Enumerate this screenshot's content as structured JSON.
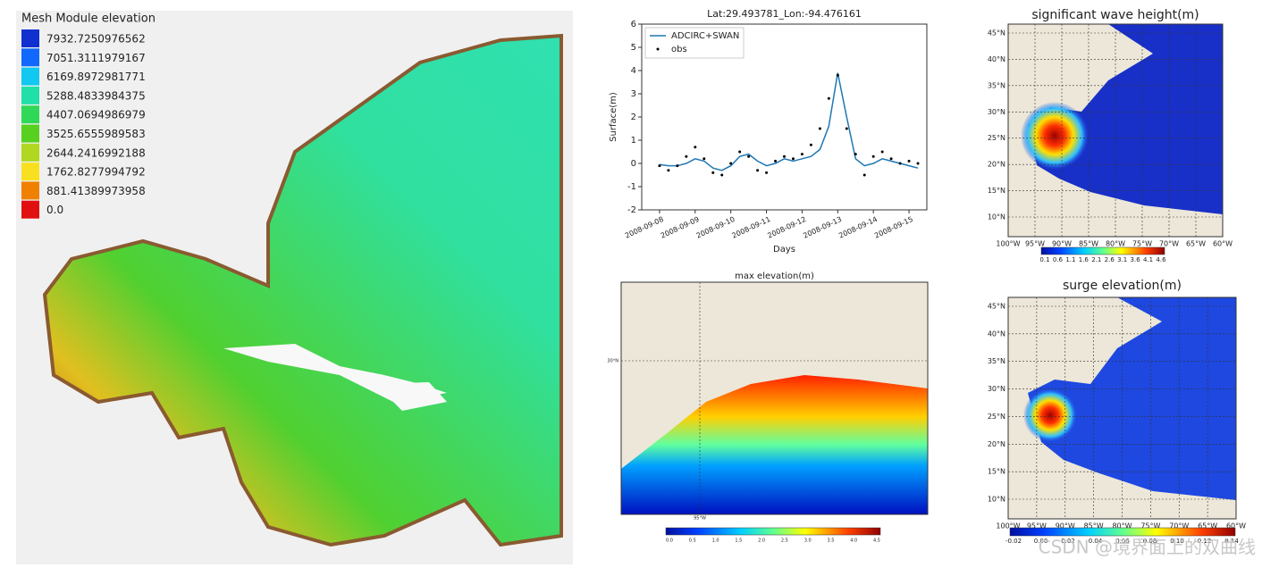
{
  "mesh_panel": {
    "title": "Mesh Module elevation",
    "legend": [
      {
        "label": "7932.7250976562",
        "color": "#1030d0"
      },
      {
        "label": "7051.3111979167",
        "color": "#1068ff"
      },
      {
        "label": "6169.8972981771",
        "color": "#10c8f0"
      },
      {
        "label": "5288.4833984375",
        "color": "#20e0a8"
      },
      {
        "label": "4407.0694986979",
        "color": "#30d858"
      },
      {
        "label": "3525.6555989583",
        "color": "#58d020"
      },
      {
        "label": "2644.2416992188",
        "color": "#b0d820"
      },
      {
        "label": "1762.8277994792",
        "color": "#f8e020"
      },
      {
        "label": "881.41389973958",
        "color": "#f08000"
      },
      {
        "label": "0.0",
        "color": "#e01010"
      }
    ]
  },
  "chart_data": {
    "type": "line",
    "title": "Lat:29.493781_Lon:-94.476161",
    "x_label": "Days",
    "y_label": "Surface(m)",
    "x": [
      "2008-09-08 00:00",
      "2008-09-08 06:00",
      "2008-09-08 12:00",
      "2008-09-08 18:00",
      "2008-09-09 00:00",
      "2008-09-09 06:00",
      "2008-09-09 12:00",
      "2008-09-09 18:00",
      "2008-09-10 00:00",
      "2008-09-10 06:00",
      "2008-09-10 12:00",
      "2008-09-10 18:00",
      "2008-09-11 00:00",
      "2008-09-11 06:00",
      "2008-09-11 12:00",
      "2008-09-11 18:00",
      "2008-09-12 00:00",
      "2008-09-12 06:00",
      "2008-09-12 12:00",
      "2008-09-12 18:00",
      "2008-09-13 00:00",
      "2008-09-13 06:00",
      "2008-09-13 12:00",
      "2008-09-13 18:00",
      "2008-09-14 00:00",
      "2008-09-14 06:00",
      "2008-09-14 12:00",
      "2008-09-14 18:00",
      "2008-09-15 00:00",
      "2008-09-15 06:00"
    ],
    "series": [
      {
        "name": "ADCIRC+SWAN",
        "color": "#1f77b4",
        "style": "line",
        "values": [
          -0.05,
          -0.1,
          -0.1,
          0.0,
          0.2,
          0.1,
          -0.2,
          -0.3,
          -0.1,
          0.3,
          0.4,
          0.1,
          -0.1,
          0.0,
          0.2,
          0.1,
          0.2,
          0.3,
          0.6,
          1.6,
          3.9,
          2.0,
          0.2,
          -0.1,
          0.0,
          0.2,
          0.1,
          0.0,
          -0.1,
          -0.2
        ]
      },
      {
        "name": "obs",
        "color": "#000000",
        "style": "dots",
        "values": [
          -0.1,
          -0.3,
          -0.1,
          0.3,
          0.7,
          0.2,
          -0.4,
          -0.5,
          0.0,
          0.5,
          0.3,
          -0.3,
          -0.4,
          0.1,
          0.3,
          0.2,
          0.4,
          0.8,
          1.5,
          2.8,
          3.8,
          1.5,
          0.4,
          -0.5,
          0.3,
          0.5,
          0.2,
          0.0,
          0.1,
          0.0
        ]
      }
    ],
    "xlim": [
      "2008-09-07 12:00",
      "2008-09-15 12:00"
    ],
    "xticks": [
      "2008-09-08",
      "2008-09-09",
      "2008-09-10",
      "2008-09-11",
      "2008-09-12",
      "2008-09-13",
      "2008-09-14",
      "2008-09-15"
    ],
    "ylim": [
      -2,
      6
    ],
    "yticks": [
      -2,
      -1,
      0,
      1,
      2,
      3,
      4,
      5,
      6
    ],
    "legend": "upper left"
  },
  "maps": [
    {
      "title": "max elevation(m)",
      "lat_labels": [
        "30°N"
      ],
      "lon_labels": [
        "95°W"
      ],
      "colorbar": [
        "0.0",
        "0.5",
        "1.0",
        "1.5",
        "2.0",
        "2.5",
        "3.0",
        "3.5",
        "4.0",
        "4.5"
      ]
    },
    {
      "title": "significant wave height(m)",
      "lat_labels": [
        "10°N",
        "15°N",
        "20°N",
        "25°N",
        "30°N",
        "35°N",
        "40°N",
        "45°N"
      ],
      "lon_labels": [
        "100°W",
        "95°W",
        "90°W",
        "85°W",
        "80°W",
        "75°W",
        "70°W",
        "65°W",
        "60°W"
      ],
      "colorbar": [
        "0.1",
        "0.6",
        "1.1",
        "1.6",
        "2.1",
        "2.6",
        "3.1",
        "3.6",
        "4.1",
        "4.6"
      ]
    },
    {
      "title": "surge elevation(m)",
      "lat_labels": [
        "10°N",
        "15°N",
        "20°N",
        "25°N",
        "30°N",
        "35°N",
        "40°N",
        "45°N"
      ],
      "lon_labels": [
        "100°W",
        "95°W",
        "90°W",
        "85°W",
        "80°W",
        "75°W",
        "70°W",
        "65°W",
        "60°W"
      ],
      "colorbar": [
        "-0.02",
        "0.00",
        "0.02",
        "0.04",
        "0.06",
        "0.08",
        "0.10",
        "0.12",
        "0.14"
      ]
    }
  ],
  "watermark": "CSDN @境界面上的双曲线"
}
